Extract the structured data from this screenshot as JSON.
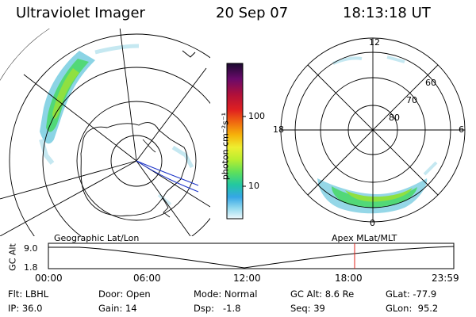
{
  "header": {
    "title": "Ultraviolet Imager",
    "date": "20 Sep 07",
    "time": "18:13:18 UT"
  },
  "colorbar": {
    "unit_label": "photon cm⁻²s⁻¹",
    "ticks": [
      "100",
      "10"
    ],
    "colors": [
      "#1a0a30",
      "#6a0a6a",
      "#b0103a",
      "#e02020",
      "#f06a10",
      "#f6b20a",
      "#eeee30",
      "#b8ee30",
      "#5fe05a",
      "#22c8a0",
      "#35a6e6",
      "#90d8ee",
      "#eef8fb"
    ]
  },
  "left_map": {
    "name": "Geographic Lat/Lon",
    "aurora_colors": [
      "#2bb0d0",
      "#52d878",
      "#8fe040",
      "#b7e62a"
    ]
  },
  "polar_plot": {
    "name": "Apex MLat/MLT",
    "mlt_labels": {
      "top": "12",
      "bottom": "0",
      "left": "18",
      "right": "6"
    },
    "lat_labels": [
      "60",
      "70",
      "80"
    ]
  },
  "timeline": {
    "ylabel": "GC Alt",
    "ymax_label": "9.0",
    "ymin_label": "1.8",
    "time_labels": [
      "00:00",
      "06:00",
      "12:00",
      "18:00",
      "23:59"
    ],
    "marker_color": "#e0201a"
  },
  "info": {
    "filter": "Flt: LBHL",
    "ip": "IP: 36.0",
    "door": "Door: Open",
    "gain": "Gain: 14",
    "mode": "Mode: Normal",
    "dsp": "Dsp:   -1.8",
    "gc_alt": "GC Alt: 8.6 Re",
    "seq": "Seq: 39",
    "glat": "GLat: -77.9",
    "glon": "GLon:  95.2"
  }
}
